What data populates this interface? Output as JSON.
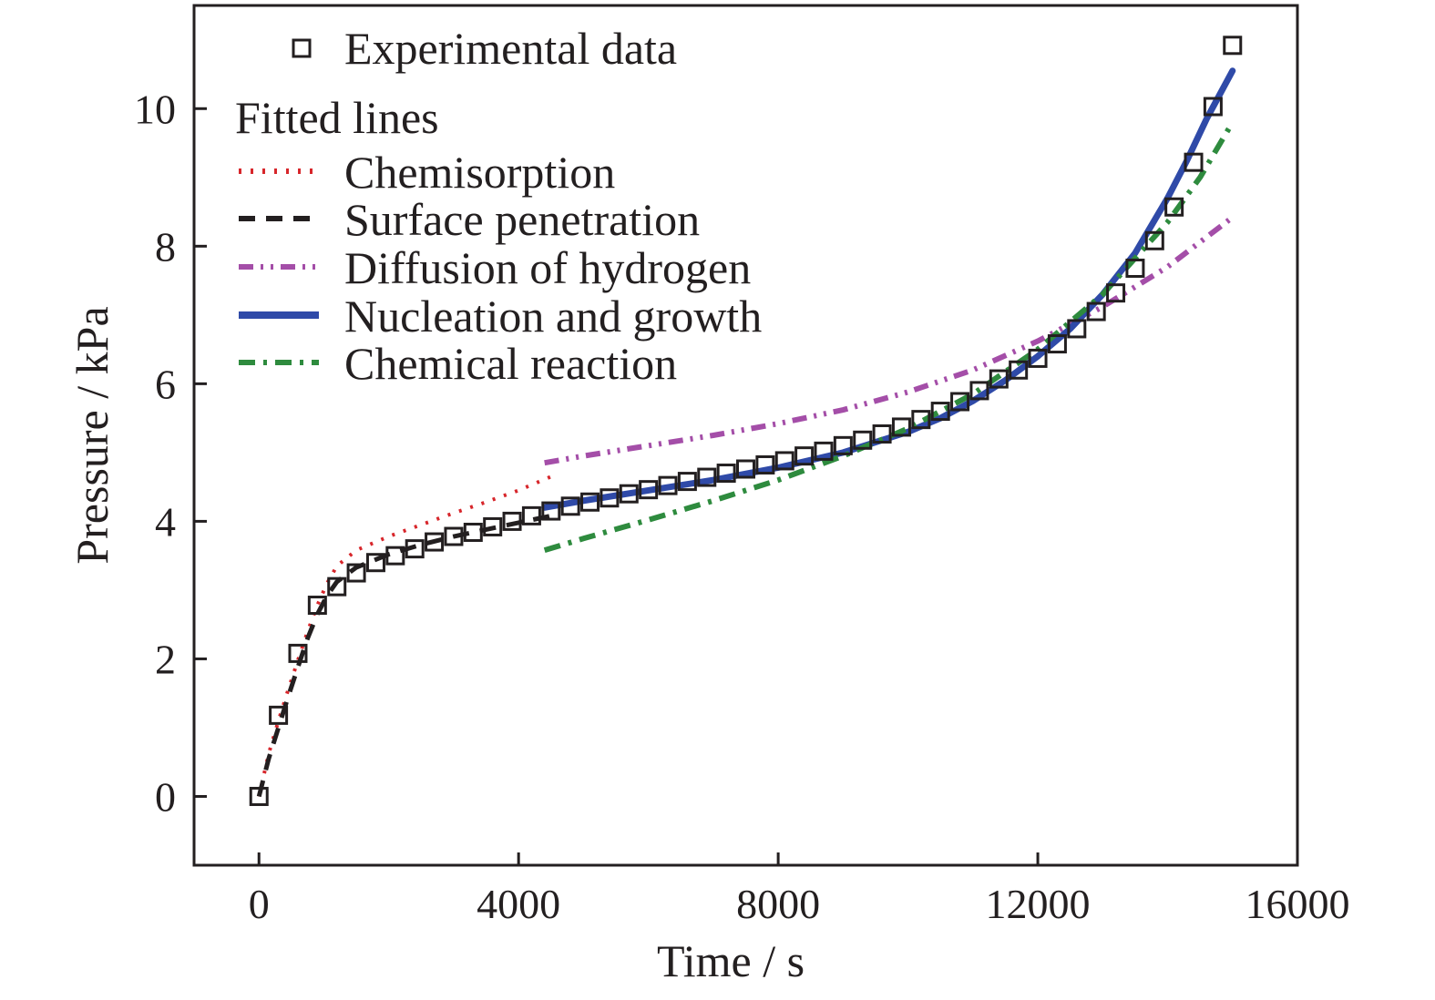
{
  "chart_data": {
    "type": "scatter",
    "xlabel": "Time / s",
    "ylabel": "Pressure / kPa",
    "xlim": [
      -1000,
      16000
    ],
    "ylim": [
      -1,
      11.5
    ],
    "xticks": [
      0,
      4000,
      8000,
      12000,
      16000
    ],
    "yticks": [
      0,
      2,
      4,
      6,
      8,
      10
    ],
    "grid": false,
    "legend": {
      "placement": "top-left",
      "heading": "Fitted lines"
    },
    "experimental": {
      "name": "Experimental data",
      "color": "#231f20",
      "x": [
        0,
        300,
        600,
        900,
        1200,
        1500,
        1800,
        2100,
        2400,
        2700,
        3000,
        3300,
        3600,
        3900,
        4200,
        4500,
        4800,
        5100,
        5400,
        5700,
        6000,
        6300,
        6600,
        6900,
        7200,
        7500,
        7800,
        8100,
        8400,
        8700,
        9000,
        9300,
        9600,
        9900,
        10200,
        10500,
        10800,
        11100,
        11400,
        11700,
        12000,
        12300,
        12600,
        12900,
        13200,
        13500,
        13800,
        14100,
        14400,
        14700,
        15000
      ],
      "y": [
        0,
        1.18,
        2.08,
        2.78,
        3.05,
        3.25,
        3.4,
        3.5,
        3.6,
        3.7,
        3.78,
        3.84,
        3.92,
        4.0,
        4.08,
        4.15,
        4.22,
        4.28,
        4.34,
        4.4,
        4.46,
        4.52,
        4.58,
        4.64,
        4.7,
        4.76,
        4.82,
        4.88,
        4.95,
        5.02,
        5.1,
        5.18,
        5.27,
        5.37,
        5.48,
        5.6,
        5.74,
        5.9,
        6.07,
        6.2,
        6.37,
        6.58,
        6.8,
        7.05,
        7.32,
        7.68,
        8.08,
        8.57,
        9.22,
        10.03,
        10.92
      ]
    },
    "series": [
      {
        "name": "Chemisorption",
        "style": "dotted",
        "color": "#d7262b",
        "x": [
          0,
          150,
          300,
          450,
          600,
          750,
          900,
          1050,
          1200,
          1500,
          2000,
          2500,
          3000,
          3500,
          4000,
          4500
        ],
        "y": [
          0,
          0.62,
          1.1,
          1.55,
          1.98,
          2.4,
          2.78,
          3.1,
          3.35,
          3.58,
          3.78,
          3.95,
          4.12,
          4.28,
          4.45,
          4.65
        ]
      },
      {
        "name": "Surface penetration",
        "style": "dashed",
        "color": "#231f20",
        "x": [
          0,
          150,
          300,
          450,
          600,
          750,
          900,
          1050,
          1200,
          1500,
          2000,
          2500,
          3000,
          3500,
          4000,
          4500
        ],
        "y": [
          0,
          0.55,
          1.0,
          1.45,
          1.88,
          2.3,
          2.65,
          2.92,
          3.12,
          3.33,
          3.52,
          3.66,
          3.78,
          3.88,
          3.98,
          4.08
        ]
      },
      {
        "name": "Diffusion of hydrogen",
        "style": "dash-dot-dot",
        "color": "#a44ea8",
        "x": [
          4400,
          5000,
          6000,
          7000,
          8000,
          9000,
          10000,
          11000,
          12000,
          13000,
          14000,
          15000
        ],
        "y": [
          4.85,
          4.95,
          5.1,
          5.25,
          5.42,
          5.62,
          5.88,
          6.2,
          6.62,
          7.12,
          7.7,
          8.42
        ]
      },
      {
        "name": "Nucleation and growth",
        "style": "solid",
        "color": "#2f4aa8",
        "x": [
          4400,
          5000,
          6000,
          7000,
          8000,
          9000,
          10000,
          10500,
          11000,
          11500,
          12000,
          12500,
          13000,
          13500,
          14000,
          14300,
          14600,
          14800,
          15000
        ],
        "y": [
          4.2,
          4.3,
          4.45,
          4.6,
          4.78,
          5.0,
          5.3,
          5.5,
          5.75,
          6.05,
          6.4,
          6.8,
          7.3,
          7.9,
          8.7,
          9.25,
          9.85,
          10.2,
          10.55
        ]
      },
      {
        "name": "Chemical reaction",
        "style": "dash-dot",
        "color": "#2e8b3e",
        "x": [
          4400,
          5000,
          6000,
          7000,
          8000,
          9000,
          10000,
          11000,
          12000,
          13000,
          14000,
          14500,
          15000
        ],
        "y": [
          3.58,
          3.75,
          4.02,
          4.3,
          4.6,
          4.95,
          5.35,
          5.85,
          6.5,
          7.3,
          8.35,
          9.0,
          9.8
        ]
      }
    ]
  }
}
